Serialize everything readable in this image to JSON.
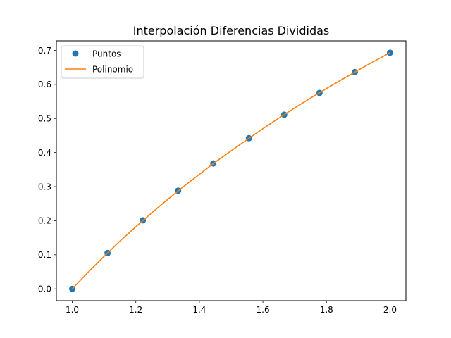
{
  "chart_data": {
    "type": "scatter",
    "title": "Interpolación Diferencias Divididas",
    "xlabel": "",
    "ylabel": "",
    "xlim": [
      0.95,
      2.05
    ],
    "ylim": [
      -0.0347,
      0.7278
    ],
    "x_ticks": [
      1.0,
      1.2,
      1.4,
      1.6,
      1.8,
      2.0
    ],
    "x_tick_labels": [
      "1.0",
      "1.2",
      "1.4",
      "1.6",
      "1.8",
      "2.0"
    ],
    "y_ticks": [
      0.0,
      0.1,
      0.2,
      0.3,
      0.4,
      0.5,
      0.6,
      0.7
    ],
    "y_tick_labels": [
      "0.0",
      "0.1",
      "0.2",
      "0.3",
      "0.4",
      "0.5",
      "0.6",
      "0.7"
    ],
    "grid": false,
    "legend_position": "upper-left",
    "series": [
      {
        "name": "Puntos",
        "kind": "scatter",
        "color": "#1f77b4",
        "x": [
          1.0,
          1.111,
          1.222,
          1.333,
          1.444,
          1.556,
          1.667,
          1.778,
          1.889,
          2.0
        ],
        "y": [
          0.0,
          0.105,
          0.201,
          0.288,
          0.368,
          0.442,
          0.511,
          0.575,
          0.636,
          0.693
        ]
      },
      {
        "name": "Polinomio",
        "kind": "line",
        "color": "#ff7f0e",
        "x": [
          1.0,
          1.05,
          1.1,
          1.15,
          1.2,
          1.25,
          1.3,
          1.35,
          1.4,
          1.45,
          1.5,
          1.55,
          1.6,
          1.65,
          1.7,
          1.75,
          1.8,
          1.85,
          1.9,
          1.95,
          2.0
        ],
        "y": [
          0.0,
          0.049,
          0.095,
          0.14,
          0.182,
          0.223,
          0.262,
          0.3,
          0.336,
          0.372,
          0.405,
          0.438,
          0.47,
          0.501,
          0.531,
          0.56,
          0.588,
          0.615,
          0.642,
          0.668,
          0.693
        ]
      }
    ]
  }
}
